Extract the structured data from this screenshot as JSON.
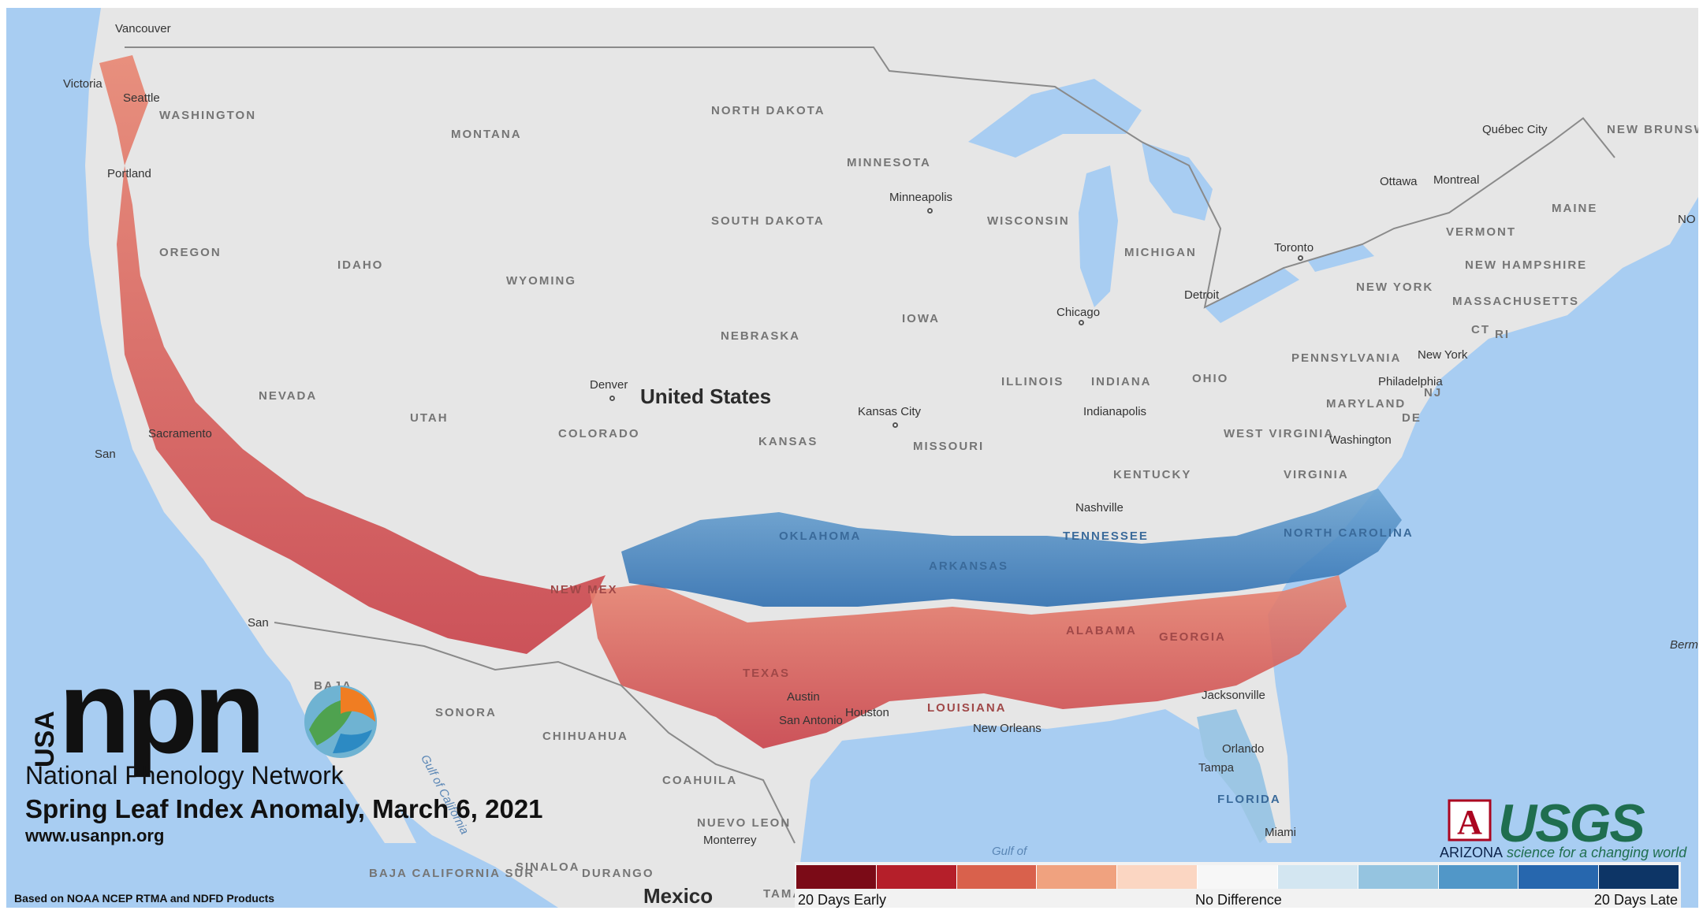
{
  "title": "Spring Leaf Index Anomaly, March 6, 2021",
  "org": {
    "usa": "USA",
    "npn": "npn",
    "network": "National Phenology Network",
    "url": "www.usanpn.org"
  },
  "source_note": "Based on NOAA NCEP RTMA and NDFD Products",
  "partners": {
    "ua_letter": "A",
    "ua_name": "ARIZONA",
    "usgs": "USGS",
    "usgs_tagline": "science for a changing world"
  },
  "legend": {
    "labels": {
      "left": "20 Days Early",
      "center": "No Difference",
      "right": "20 Days Late"
    },
    "colors": [
      "#7b0b17",
      "#b51f2a",
      "#d9614c",
      "#f0a27f",
      "#fbd6c2",
      "#f7f7f7",
      "#d3e6f1",
      "#95c4e0",
      "#5197c8",
      "#2767ae",
      "#0d3566"
    ]
  },
  "map": {
    "country": "United States",
    "country_south": "Mexico",
    "states": {
      "washington": "WASHINGTON",
      "oregon": "OREGON",
      "idaho": "IDAHO",
      "montana": "MONTANA",
      "wyoming": "WYOMING",
      "nevada": "NEVADA",
      "utah": "UTAH",
      "colorado": "COLORADO",
      "north_dakota": "NORTH DAKOTA",
      "south_dakota": "SOUTH DAKOTA",
      "nebraska": "NEBRASKA",
      "kansas": "KANSAS",
      "minnesota": "MINNESOTA",
      "iowa": "IOWA",
      "missouri": "MISSOURI",
      "wisconsin": "WISCONSIN",
      "michigan": "MICHIGAN",
      "illinois": "ILLINOIS",
      "indiana": "INDIANA",
      "ohio": "OHIO",
      "kentucky": "KENTUCKY",
      "pennsylvania": "PENNSYLVANIA",
      "new_york": "NEW YORK",
      "west_virginia": "WEST VIRGINIA",
      "virginia": "VIRGINIA",
      "maryland": "MARYLAND",
      "vermont": "VERMONT",
      "new_hampshire": "NEW HAMPSHIRE",
      "massachusetts": "MASSACHUSETTS",
      "maine": "MAINE",
      "ct": "CT",
      "ri": "RI",
      "nj": "NJ",
      "de": "DE",
      "new_brunswick": "NEW BRUNSWICK",
      "sonora": "SONORA",
      "chihuahua": "CHIHUAHUA",
      "coahuila": "COAHUILA",
      "nuevo_leon": "NUEVO LEON",
      "sinaloa": "SINALOA",
      "durango": "DURANGO",
      "baja": "BAJA",
      "baja_california_sur": "BAJA CALIFORNIA SUR",
      "tamaulipas": "TAMAULI",
      "texas": "TEXAS",
      "louisiana": "LOUISIANA",
      "florida": "FLORIDA",
      "georgia": "GEORGIA",
      "alabama": "ALABAMA",
      "oklahoma": "OKLAHOMA",
      "arkansas": "ARKANSAS",
      "tennessee": "TENNESSEE",
      "north_carolina": "NORTH CAROLINA",
      "new_mexico": "NEW MEX"
    },
    "cities": {
      "vancouver": "Vancouver",
      "victoria": "Victoria",
      "seattle": "Seattle",
      "portland": "Portland",
      "denver": "Denver",
      "minneapolis": "Minneapolis",
      "chicago": "Chicago",
      "detroit": "Detroit",
      "toronto": "Toronto",
      "ottawa": "Ottawa",
      "montreal": "Montreal",
      "quebec_city": "Québec City",
      "kansas_city": "Kansas City",
      "indianapolis": "Indianapolis",
      "nashville": "Nashville",
      "new_york": "New York",
      "philadelphia": "Philadelphia",
      "washington_dc": "Washington",
      "jacksonville": "Jacksonville",
      "orlando": "Orlando",
      "tampa": "Tampa",
      "miami": "Miami",
      "houston": "Houston",
      "austin": "Austin",
      "san_antonio": "San Antonio",
      "new_orleans": "New Orleans",
      "monterrey": "Monterrey",
      "san_francisco": "San",
      "sacramento": "Sacramento",
      "san_diego": "San"
    },
    "water": {
      "gulf": "Gulf of",
      "gulf_of_california": "Gulf of California",
      "bermuda": "Berm",
      "nova": "NO"
    }
  }
}
